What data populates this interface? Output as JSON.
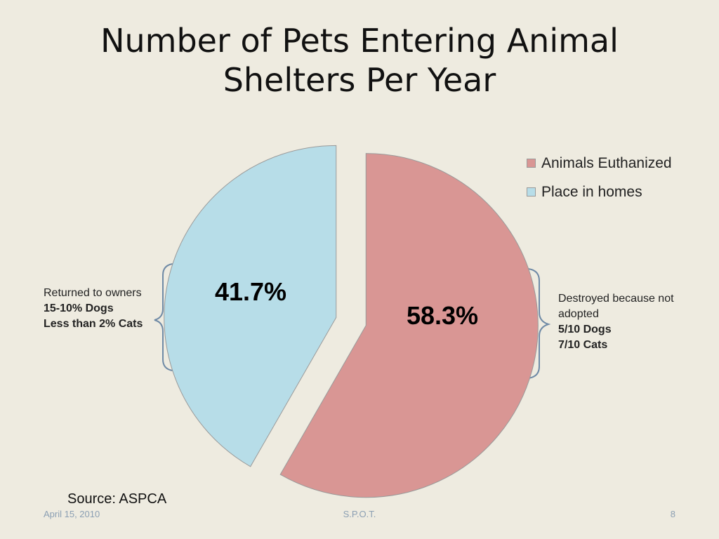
{
  "slide": {
    "title_line1": "Number of Pets Entering Animal",
    "title_line2": "Shelters Per Year",
    "source": "Source: ASPCA",
    "footer": {
      "date": "April 15, 2010",
      "center": "S.P.O.T.",
      "page": "8"
    }
  },
  "annotations": {
    "left": {
      "line1": "Returned to owners",
      "line2": "15-10% Dogs",
      "line3": "Less than 2% Cats"
    },
    "right": {
      "line1": "Destroyed because not",
      "line2": "adopted",
      "line3": "5/10  Dogs",
      "line4": "7/10  Cats"
    }
  },
  "chart_data": {
    "type": "pie",
    "title": "Number of Pets Entering Animal Shelters Per Year",
    "slices": [
      {
        "name": "Animals Euthanized",
        "value": 58.3,
        "label": "58.3%",
        "color": "#d99694"
      },
      {
        "name": "Place in homes",
        "value": 41.7,
        "label": "41.7%",
        "color": "#b7dde8"
      }
    ],
    "legend": "right",
    "exploded": true
  }
}
